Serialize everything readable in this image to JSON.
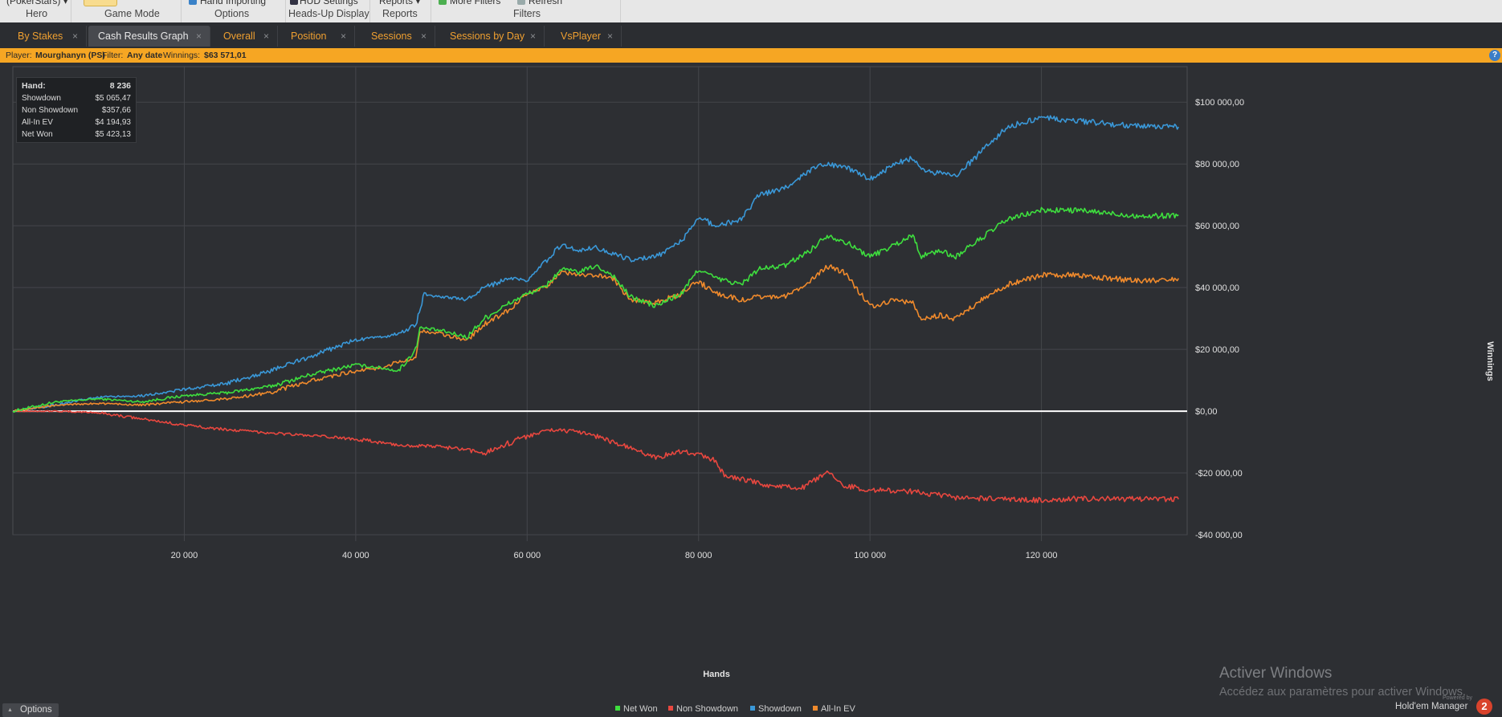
{
  "ribbon": {
    "groups": [
      {
        "top": "(PokerStars) ▾",
        "label": "Hero"
      },
      {
        "top": "",
        "label": "Game Mode"
      },
      {
        "top": "Hand Importing",
        "label": "Options"
      },
      {
        "top": "HUD Settings",
        "label": "Heads-Up Display"
      },
      {
        "top": "Reports ▾",
        "label": "Reports"
      },
      {
        "top": "More Filters",
        "label": "Filters"
      },
      {
        "top": "Refresh",
        "label": ""
      }
    ]
  },
  "tabs": [
    {
      "label": "By Stakes",
      "active": false
    },
    {
      "label": "Cash Results Graph",
      "active": true
    },
    {
      "label": "Overall",
      "active": false
    },
    {
      "label": "Position",
      "active": false
    },
    {
      "label": "Sessions",
      "active": false
    },
    {
      "label": "Sessions by Day",
      "active": false
    },
    {
      "label": "VsPlayer",
      "active": false
    }
  ],
  "tab_close": "×",
  "filterbar": {
    "player_label": "Player:",
    "player_value": "Mourghanyn (PS)",
    "filter_label": "Filter:",
    "filter_value": "Any date",
    "winnings_label": "Winnings:",
    "winnings_value": "$63 571,01",
    "help": "?"
  },
  "stats": [
    {
      "label": "Hand:",
      "value": "8 236"
    },
    {
      "label": "Showdown",
      "value": "$5 065,47"
    },
    {
      "label": "Non Showdown",
      "value": "$357,66"
    },
    {
      "label": "All-In EV",
      "value": "$4 194,93"
    },
    {
      "label": "Net Won",
      "value": "$5 423,13"
    }
  ],
  "chart_data": {
    "type": "line",
    "xlabel": "Hands",
    "ylabel": "Winnings",
    "xlim": [
      0,
      137000
    ],
    "ylim": [
      -40000,
      105000
    ],
    "x_ticks": [
      20000,
      40000,
      60000,
      80000,
      100000,
      120000
    ],
    "x_tick_labels": [
      "20 000",
      "40 000",
      "60 000",
      "80 000",
      "100 000",
      "120 000"
    ],
    "y_ticks": [
      100000,
      80000,
      60000,
      40000,
      20000,
      0,
      -20000,
      -40000
    ],
    "y_tick_labels": [
      "$100 000,00",
      "$80 000,00",
      "$60 000,00",
      "$40 000,00",
      "$20 000,00",
      "$0,00",
      "-$20 000,00",
      "-$40 000,00"
    ],
    "grid": true,
    "legend_position": "bottom-center",
    "series": [
      {
        "name": "Net Won",
        "color": "#3ede3e",
        "x": [
          0,
          5000,
          10000,
          15000,
          20000,
          25000,
          30000,
          35000,
          40000,
          43000,
          45000,
          47000,
          47500,
          50000,
          53000,
          55000,
          58000,
          60000,
          62000,
          64000,
          66000,
          68000,
          70000,
          72000,
          75000,
          78000,
          80000,
          82000,
          85000,
          87000,
          90000,
          93000,
          95000,
          97000,
          100000,
          103000,
          105000,
          106000,
          108000,
          110000,
          113000,
          116000,
          120000,
          124000,
          128000,
          132000,
          136000
        ],
        "y": [
          0,
          3000,
          4000,
          3000,
          5000,
          6000,
          8000,
          12000,
          15000,
          14000,
          13000,
          20000,
          27000,
          26000,
          24000,
          30000,
          35000,
          38000,
          40000,
          46000,
          45000,
          47000,
          44000,
          37000,
          34000,
          38000,
          46000,
          43000,
          41000,
          46000,
          47000,
          52000,
          57000,
          55000,
          50000,
          54000,
          57000,
          50000,
          52000,
          50000,
          56000,
          62000,
          65000,
          65000,
          64000,
          63000,
          63500
        ]
      },
      {
        "name": "Non Showdown",
        "color": "#e8473f",
        "x": [
          0,
          5000,
          10000,
          15000,
          20000,
          25000,
          30000,
          35000,
          40000,
          45000,
          50000,
          55000,
          60000,
          63000,
          67000,
          70000,
          73000,
          75000,
          78000,
          80000,
          82000,
          83000,
          85000,
          88000,
          92000,
          95000,
          97000,
          100000,
          105000,
          110000,
          115000,
          120000,
          125000,
          130000,
          136000
        ],
        "y": [
          0,
          0,
          -500,
          -2500,
          -4500,
          -6000,
          -7000,
          -8000,
          -9000,
          -11000,
          -11500,
          -13500,
          -8000,
          -6000,
          -7000,
          -10000,
          -13000,
          -15000,
          -13000,
          -14000,
          -16000,
          -21000,
          -22000,
          -24000,
          -25000,
          -20000,
          -24000,
          -25500,
          -26000,
          -28000,
          -28500,
          -28800,
          -28300,
          -28500,
          -28500
        ]
      },
      {
        "name": "Showdown",
        "color": "#3a98d8",
        "x": [
          0,
          5000,
          10000,
          15000,
          20000,
          25000,
          30000,
          35000,
          40000,
          43000,
          45000,
          47000,
          48000,
          50000,
          53000,
          55000,
          58000,
          60000,
          62000,
          64000,
          66000,
          68000,
          70000,
          72000,
          75000,
          78000,
          80000,
          82000,
          85000,
          87000,
          90000,
          93000,
          95000,
          97000,
          100000,
          103000,
          105000,
          106000,
          108000,
          110000,
          113000,
          116000,
          120000,
          124000,
          128000,
          132000,
          136000
        ],
        "y": [
          0,
          2000,
          4500,
          5000,
          7000,
          9000,
          13000,
          18000,
          23000,
          24000,
          25000,
          28000,
          38000,
          37000,
          36000,
          40000,
          43000,
          42000,
          48000,
          54000,
          52000,
          53000,
          51000,
          49000,
          50000,
          55000,
          63000,
          60000,
          62000,
          70000,
          72000,
          78000,
          80000,
          79000,
          75000,
          80000,
          82000,
          78000,
          77000,
          76000,
          84000,
          92000,
          95000,
          94000,
          93000,
          92000,
          92000
        ]
      },
      {
        "name": "All-In EV",
        "color": "#f08a2c",
        "x": [
          0,
          5000,
          10000,
          15000,
          20000,
          25000,
          30000,
          35000,
          40000,
          43000,
          45000,
          47000,
          47500,
          50000,
          53000,
          55000,
          58000,
          60000,
          62000,
          64000,
          66000,
          68000,
          70000,
          72000,
          75000,
          78000,
          80000,
          82000,
          85000,
          87000,
          90000,
          93000,
          95000,
          97000,
          100000,
          103000,
          105000,
          106000,
          108000,
          110000,
          113000,
          116000,
          120000,
          124000,
          128000,
          132000,
          136000
        ],
        "y": [
          0,
          2000,
          2500,
          2000,
          3000,
          4000,
          6000,
          10000,
          13000,
          14000,
          16000,
          17000,
          26000,
          25000,
          23000,
          28000,
          33000,
          38000,
          40000,
          45000,
          44000,
          44000,
          43000,
          36000,
          35000,
          38000,
          42000,
          38000,
          36000,
          37000,
          37000,
          42000,
          47000,
          45000,
          34000,
          36000,
          35000,
          30000,
          31000,
          30000,
          36000,
          41000,
          44000,
          44000,
          43000,
          42000,
          43000
        ]
      },
      {
        "name": "",
        "color": "#ffffff",
        "x": [
          0,
          137000
        ],
        "y": [
          0,
          0
        ]
      }
    ]
  },
  "watermark": {
    "line1": "Activer Windows",
    "line2": "Accédez aux paramètres pour activer Windows."
  },
  "brand": {
    "small": "Powered by",
    "name": "Hold'em Manager",
    "badge": "2"
  },
  "options_button": {
    "label": "Options",
    "arrow": "▲"
  }
}
